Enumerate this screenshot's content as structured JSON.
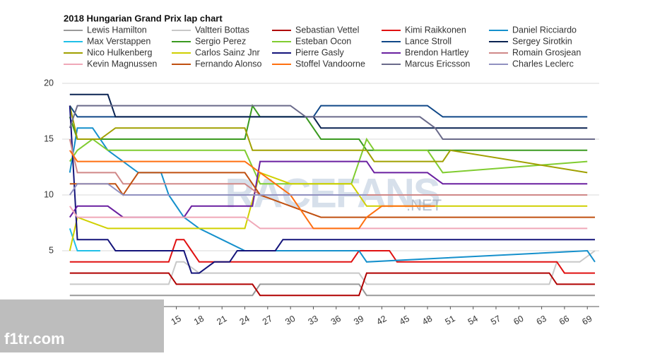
{
  "chart_data": {
    "type": "line",
    "title": "2018 Hungarian Grand Prix lap chart",
    "xlim": [
      0,
      70
    ],
    "ylim": [
      0,
      20
    ],
    "xticks": [
      15,
      18,
      21,
      24,
      27,
      30,
      33,
      36,
      39,
      42,
      45,
      48,
      51,
      54,
      57,
      60,
      63,
      66,
      69
    ],
    "yticks": [
      5,
      10,
      15,
      20
    ],
    "grid": true,
    "watermark": "RACEFANS",
    "watermark_suffix": ".NET",
    "site_badge": "f1tr.com",
    "series": [
      {
        "name": "Lewis Hamilton",
        "color": "#9a9a9a",
        "x": [
          1,
          25,
          26,
          39,
          40,
          70
        ],
        "values": [
          1,
          1,
          2,
          2,
          1,
          1
        ]
      },
      {
        "name": "Valtteri Bottas",
        "color": "#c8c8c8",
        "x": [
          1,
          14,
          15,
          16,
          18,
          39,
          40,
          64,
          65,
          68,
          70
        ],
        "values": [
          2,
          2,
          4,
          4,
          3,
          3,
          2,
          2,
          4,
          4,
          5
        ]
      },
      {
        "name": "Sebastian Vettel",
        "color": "#b00000",
        "x": [
          1,
          14,
          15,
          25,
          26,
          39,
          40,
          64,
          65,
          70
        ],
        "values": [
          3,
          3,
          2,
          2,
          1,
          1,
          3,
          3,
          2,
          2
        ]
      },
      {
        "name": "Kimi Raikkonen",
        "color": "#e01010",
        "x": [
          1,
          14,
          15,
          16,
          17,
          18,
          38,
          39,
          43,
          44,
          65,
          66,
          70
        ],
        "values": [
          4,
          4,
          6,
          6,
          5,
          4,
          4,
          5,
          5,
          4,
          4,
          3,
          3
        ]
      },
      {
        "name": "Daniel Ricciardo",
        "color": "#1590cc",
        "x": [
          1,
          2,
          4,
          6,
          10,
          13,
          14,
          16,
          18,
          21,
          24,
          39,
          40,
          69,
          70
        ],
        "values": [
          12,
          16,
          16,
          14,
          12,
          12,
          10,
          8,
          7,
          6,
          5,
          5,
          4,
          5,
          4
        ]
      },
      {
        "name": "Max Verstappen",
        "color": "#20c0e8",
        "x": [
          1,
          2,
          5
        ],
        "values": [
          7,
          5,
          5
        ]
      },
      {
        "name": "Sergio Perez",
        "color": "#3a9a20",
        "x": [
          1,
          2,
          24,
          25,
          26,
          32,
          34,
          39,
          40,
          69
        ],
        "values": [
          17,
          15,
          15,
          18,
          17,
          17,
          15,
          15,
          14,
          14
        ]
      },
      {
        "name": "Esteban Ocon",
        "color": "#80cc30",
        "x": [
          1,
          2,
          4,
          6,
          24,
          26,
          38,
          40,
          41,
          48,
          50,
          69
        ],
        "values": [
          13,
          14,
          15,
          14,
          14,
          11,
          11,
          15,
          14,
          14,
          12,
          13
        ]
      },
      {
        "name": "Lance Stroll",
        "color": "#104888",
        "x": [
          1,
          2,
          33,
          34,
          48,
          50,
          69
        ],
        "values": [
          18,
          17,
          17,
          18,
          18,
          17,
          17
        ]
      },
      {
        "name": "Sergey Sirotkin",
        "color": "#0b2452",
        "x": [
          1,
          6,
          7,
          33,
          34,
          69
        ],
        "values": [
          19,
          19,
          17,
          17,
          16,
          16
        ]
      },
      {
        "name": "Nico Hulkenberg",
        "color": "#a0a000",
        "x": [
          1,
          2,
          5,
          7,
          24,
          25,
          40,
          41,
          50,
          51,
          69
        ],
        "values": [
          18,
          15,
          15,
          16,
          16,
          14,
          14,
          13,
          13,
          14,
          12
        ]
      },
      {
        "name": "Carlos Sainz Jnr",
        "color": "#d0d000",
        "x": [
          1,
          2,
          6,
          24,
          26,
          30,
          38,
          40,
          69
        ],
        "values": [
          5,
          8,
          7,
          7,
          12,
          11,
          11,
          9,
          9
        ]
      },
      {
        "name": "Pierre Gasly",
        "color": "#14147a",
        "x": [
          1,
          2,
          6,
          7,
          16,
          17,
          18,
          20,
          22,
          23,
          28,
          29,
          70
        ],
        "values": [
          18,
          6,
          6,
          5,
          5,
          3,
          3,
          4,
          4,
          5,
          5,
          6,
          6
        ]
      },
      {
        "name": "Brendon Hartley",
        "color": "#6a20a0",
        "x": [
          1,
          2,
          6,
          8,
          16,
          17,
          25,
          26,
          40,
          41,
          48,
          50,
          69
        ],
        "values": [
          8,
          9,
          9,
          8,
          8,
          9,
          9,
          13,
          13,
          12,
          12,
          11,
          11
        ]
      },
      {
        "name": "Romain Grosjean",
        "color": "#d08888",
        "x": [
          1,
          2,
          7,
          8,
          24,
          26,
          69
        ],
        "values": [
          15,
          12,
          12,
          11,
          11,
          10,
          10
        ]
      },
      {
        "name": "Kevin Magnussen",
        "color": "#f0a8b8",
        "x": [
          1,
          2,
          24,
          26,
          69
        ],
        "values": [
          9,
          8,
          8,
          7,
          7
        ]
      },
      {
        "name": "Fernando Alonso",
        "color": "#c05010",
        "x": [
          1,
          7,
          8,
          9,
          10,
          24,
          26,
          30,
          34,
          70
        ],
        "values": [
          11,
          11,
          10,
          11,
          12,
          12,
          10,
          9,
          8,
          8
        ]
      },
      {
        "name": "Stoffel Vandoorne",
        "color": "#ff7010",
        "x": [
          1,
          2,
          24,
          26,
          30,
          33,
          39,
          40,
          42,
          49
        ],
        "values": [
          14,
          13,
          13,
          12,
          10,
          7,
          7,
          8,
          9,
          9
        ]
      },
      {
        "name": "Marcus Ericsson",
        "color": "#6a6a8a",
        "x": [
          1,
          2,
          30,
          32,
          47,
          49,
          50,
          70
        ],
        "values": [
          16,
          18,
          18,
          17,
          17,
          16,
          15,
          15
        ]
      },
      {
        "name": "Charles Leclerc",
        "color": "#9090c0",
        "x": [
          1,
          2,
          6,
          8,
          26,
          40
        ],
        "values": [
          10,
          11,
          11,
          10,
          10,
          10
        ]
      }
    ]
  }
}
